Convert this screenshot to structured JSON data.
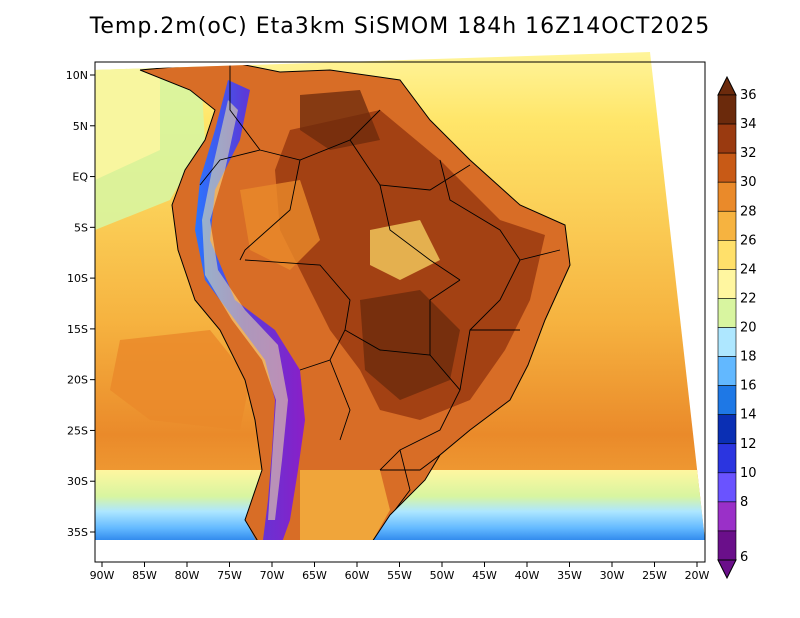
{
  "title": "Temp.2m(oC) Eta3km SiSMOM 184h 16Z14OCT2025",
  "x_ticks": [
    "90W",
    "85W",
    "80W",
    "75W",
    "70W",
    "65W",
    "60W",
    "55W",
    "50W",
    "45W",
    "40W",
    "35W",
    "30W",
    "25W",
    "20W"
  ],
  "y_ticks": [
    "10N",
    "5N",
    "EQ",
    "5S",
    "10S",
    "15S",
    "20S",
    "25S",
    "30S",
    "35S"
  ],
  "colorbar": {
    "labels": [
      "36",
      "34",
      "32",
      "30",
      "28",
      "26",
      "24",
      "22",
      "20",
      "18",
      "16",
      "14",
      "12",
      "10",
      "8",
      "6"
    ],
    "colors": [
      "#6b2a0c",
      "#9a3a10",
      "#c85a16",
      "#ea8a2a",
      "#f6b340",
      "#ffe06a",
      "#fff6a0",
      "#d8f5a0",
      "#aee7ff",
      "#62b8ff",
      "#1e78e6",
      "#0a2fb4",
      "#2b35e0",
      "#6a53ff",
      "#9a30c8",
      "#6a0f8a"
    ]
  },
  "map": {
    "ocean_color": "#f6c24a",
    "land_color": "#d86d26",
    "hot_core_color": "#7a2c0d",
    "andes_colors": [
      "#5a3bd9",
      "#2a75ff",
      "#8a1fc7"
    ],
    "south_cool_colors": [
      "#1e78e6",
      "#62b8ff",
      "#aee7ff",
      "#d8f5a0",
      "#fff6a0"
    ]
  }
}
